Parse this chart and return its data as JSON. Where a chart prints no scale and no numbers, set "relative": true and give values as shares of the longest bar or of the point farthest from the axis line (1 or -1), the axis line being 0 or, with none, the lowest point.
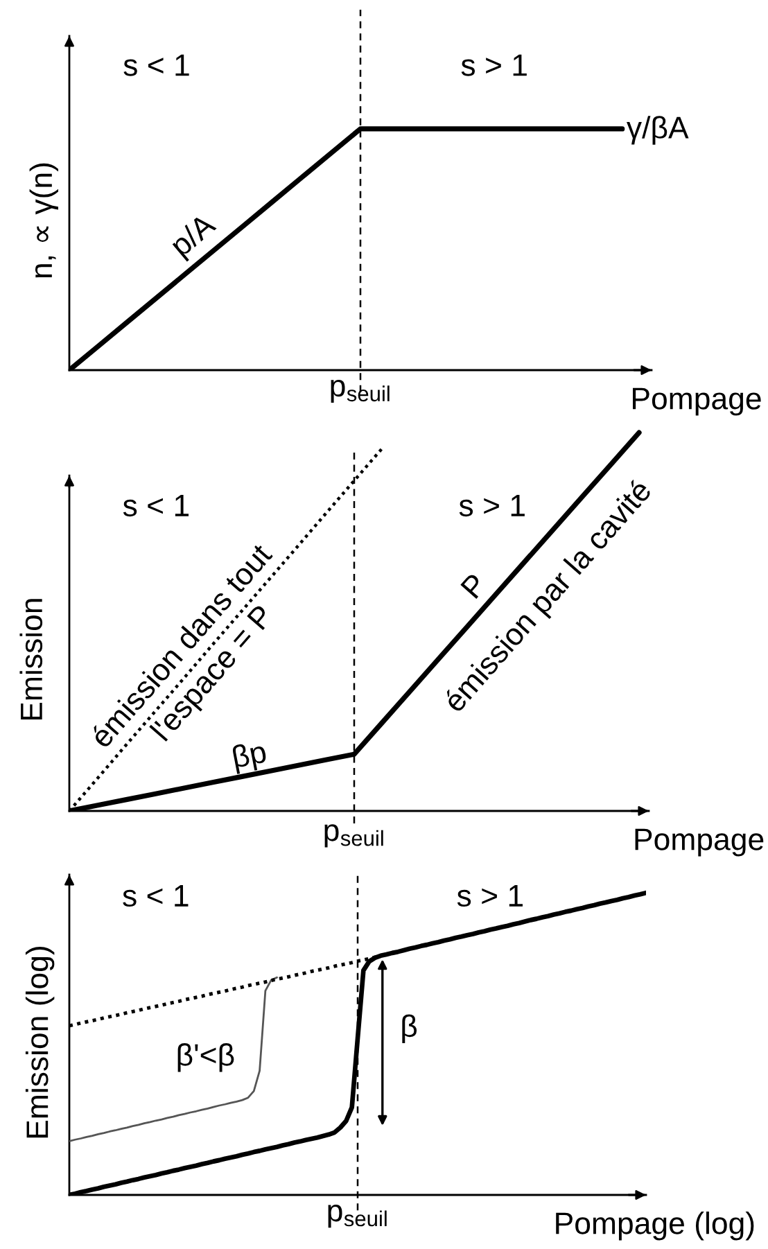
{
  "chart_data": [
    {
      "type": "line",
      "relative": true,
      "xlabel": "Pompage",
      "ylabel": "n, ∝ γ(n)",
      "categories": [
        null,
        null,
        null,
        null,
        null,
        null,
        null,
        null,
        null,
        null,
        null,
        null,
        null,
        null,
        null,
        null,
        null,
        null,
        null,
        null
      ],
      "series": [
        {
          "color": "#000000",
          "values": [
            0,
            0.1,
            0.2,
            0.3,
            0.4,
            0.5,
            0.6,
            0.7,
            0.8,
            0.9,
            1,
            1,
            1,
            1,
            1,
            1,
            1,
            1,
            1,
            1
          ]
        }
      ],
      "annotations": [
        "s < 1",
        "s > 1",
        "p/A",
        "γ/βA",
        "p$_{seuil}$"
      ]
    },
    {
      "type": "line",
      "relative": true,
      "xlabel": "Pompage",
      "ylabel": "Emission",
      "categories": [
        null,
        null,
        null,
        null,
        null,
        null,
        null,
        null,
        null,
        null,
        null,
        null,
        null,
        null,
        null,
        null,
        null,
        null,
        null,
        null,
        null
      ],
      "series": [
        {
          "color": "#000000",
          "values": [
            0,
            0.015,
            0.03,
            0.045,
            0.06,
            0.075,
            0.09,
            0.105,
            0.12,
            0.135,
            0.15,
            0.235,
            0.32,
            0.405,
            0.49,
            0.575,
            0.66,
            0.745,
            0.83,
            0.915,
            1
          ]
        },
        {
          "color": "#000000",
          "line_style": "dotted",
          "values": [
            0,
            0.087,
            0.175,
            0.262,
            0.349,
            0.437,
            0.524,
            0.611,
            0.698,
            0.786,
            0.873,
            0.96,
            null,
            null,
            null,
            null,
            null,
            null,
            null,
            null,
            null
          ]
        }
      ],
      "annotations": [
        "s < 1",
        "s > 1",
        "émission dans tout\nl'espace = P",
        "βp",
        "P",
        "émission par la cavité",
        "p$_{seuil}$"
      ]
    },
    {
      "type": "line",
      "relative": true,
      "xlabel": "Pompage (log)",
      "ylabel": "Emission (log)",
      "categories": [
        null,
        null,
        null,
        null,
        null,
        null,
        null,
        null,
        null,
        null,
        null,
        null,
        null,
        null,
        null,
        null,
        null,
        null,
        null,
        null,
        null,
        null,
        null,
        null,
        null,
        null,
        null,
        null,
        null,
        null,
        null,
        null,
        null,
        null,
        null,
        null,
        null,
        null,
        null,
        null,
        null,
        null,
        null,
        null,
        null,
        null,
        null,
        null,
        null,
        null,
        null,
        null,
        null,
        null,
        null,
        null,
        null,
        null,
        null,
        null,
        null,
        null,
        null,
        null,
        null,
        null,
        null,
        null,
        null,
        null,
        null,
        null,
        null,
        null,
        null,
        null,
        null,
        null,
        null,
        null,
        null,
        null,
        null,
        null,
        null,
        null,
        null,
        null,
        null,
        null,
        null,
        null,
        null,
        null,
        null,
        null,
        null,
        null,
        null,
        null,
        null
      ],
      "series": [
        {
          "color": "#000000",
          "values": [
            0,
            0.004,
            0.009,
            0.013,
            0.018,
            0.022,
            0.027,
            0.031,
            0.035,
            0.04,
            0.044,
            0.049,
            0.053,
            0.058,
            0.062,
            0.066,
            0.071,
            0.075,
            0.08,
            0.084,
            0.089,
            0.093,
            0.097,
            0.102,
            0.106,
            0.111,
            0.115,
            0.12,
            0.124,
            0.128,
            0.133,
            0.137,
            0.142,
            0.146,
            0.151,
            0.155,
            0.159,
            0.164,
            0.168,
            0.173,
            0.177,
            0.182,
            0.186,
            0.19,
            0.195,
            0.2,
            0.207,
            0.223,
            0.245,
            0.29,
            0.518,
            0.743,
            0.773,
            0.785,
            0.792,
            0.796,
            0.801,
            0.805,
            0.81,
            0.815,
            0.819,
            0.824,
            0.828,
            0.833,
            0.837,
            0.842,
            0.846,
            0.851,
            0.855,
            0.86,
            0.864,
            0.869,
            0.873,
            0.878,
            0.882,
            0.887,
            0.891,
            0.896,
            0.9,
            0.905,
            0.91,
            0.914,
            0.919,
            0.923,
            0.928,
            0.932,
            0.937,
            0.941,
            0.946,
            0.95,
            0.955,
            0.959,
            0.964,
            0.968,
            0.973,
            0.977,
            0.982,
            0.986,
            0.991,
            0.995,
            1
          ]
        },
        {
          "color": "#555555",
          "values": [
            0.178,
            0.183,
            0.187,
            0.192,
            0.196,
            0.201,
            0.205,
            0.21,
            0.214,
            0.219,
            0.223,
            0.228,
            0.232,
            0.237,
            0.241,
            0.246,
            0.25,
            0.255,
            0.259,
            0.264,
            0.268,
            0.273,
            0.277,
            0.282,
            0.286,
            0.291,
            0.296,
            0.3,
            0.305,
            0.309,
            0.314,
            0.322,
            0.344,
            0.411,
            0.676,
            0.711,
            0.72,
            null,
            null,
            null,
            null,
            null,
            null,
            null,
            null,
            null,
            null,
            null,
            null,
            null,
            null,
            null,
            null,
            null,
            null,
            null,
            null,
            null,
            null,
            null,
            null,
            null,
            null,
            null,
            null,
            null,
            null,
            null,
            null,
            null,
            null,
            null,
            null,
            null,
            null,
            null,
            null,
            null,
            null,
            null,
            null,
            null,
            null,
            null,
            null,
            null,
            null,
            null,
            null,
            null,
            null,
            null,
            null,
            null,
            null,
            null,
            null,
            null,
            null,
            null,
            null
          ]
        },
        {
          "color": "#000000",
          "line_style": "dotted",
          "values": [
            0.56,
            0.564,
            0.569,
            0.573,
            0.577,
            0.581,
            0.586,
            0.59,
            0.594,
            0.598,
            0.603,
            0.607,
            0.611,
            0.616,
            0.62,
            0.624,
            0.628,
            0.633,
            0.637,
            0.641,
            0.646,
            0.65,
            0.654,
            0.658,
            0.663,
            0.667,
            0.671,
            0.675,
            0.68,
            0.684,
            0.688,
            0.693,
            0.697,
            0.701,
            0.705,
            0.71,
            0.714,
            0.718,
            0.722,
            0.727,
            0.731,
            0.735,
            0.74,
            0.744,
            0.748,
            0.752,
            0.757,
            0.761,
            0.765,
            0.769,
            0.774,
            0.778,
            0.782,
            0.787,
            0.791,
            null,
            null,
            null,
            null,
            null,
            null,
            null,
            null,
            null,
            null,
            null,
            null,
            null,
            null,
            null,
            null,
            null,
            null,
            null,
            null,
            null,
            null,
            null,
            null,
            null,
            null,
            null,
            null,
            null,
            null,
            null,
            null,
            null,
            null,
            null,
            null,
            null,
            null,
            null,
            null,
            null,
            null,
            null,
            null,
            null,
            null
          ]
        }
      ],
      "annotations": [
        "s < 1",
        "s > 1",
        "β'<β",
        "β",
        "p$_{seuil}$"
      ]
    }
  ]
}
